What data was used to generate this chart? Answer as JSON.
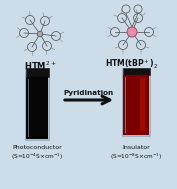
{
  "bg_color": "#ccdce8",
  "left_label_main": "HTM$^{2+}$",
  "right_label_main": "HTM(tBP$^+$)$_2$",
  "arrow_text": "Pyridination",
  "left_bottom_label1": "Photoconductor",
  "left_bottom_label2": "(S=10$^{-4}$S×cm$^{-1}$)",
  "right_bottom_label1": "Insulator",
  "right_bottom_label2": "(S=10$^{-8}$S×cm$^{-1}$)",
  "vial_left_body_color": "#050505",
  "vial_left_cap_color": "#111111",
  "vial_right_body_color": "#7a0000",
  "vial_right_highlight": "#bb1500",
  "vial_right_cap_color": "#111111",
  "vial_glass_edge": "#8aaabb",
  "arrow_color": "#111111",
  "text_color": "#111111",
  "molecule_color": "#555555",
  "molecule_color_light": "#888888",
  "pink_center": "#e090a8",
  "pink_edge": "#b05070"
}
